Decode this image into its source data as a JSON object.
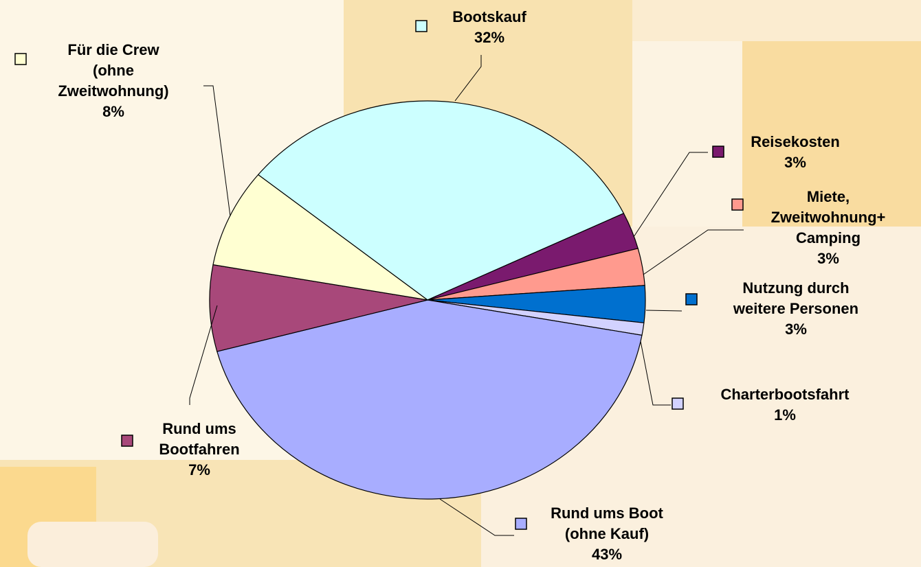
{
  "chart_data": {
    "type": "pie",
    "categories": [
      "Bootskauf",
      "Reisekosten",
      "Miete, Zweitwohnung+ Camping",
      "Nutzung durch weitere Personen",
      "Charterbootsfahrt",
      "Rund ums Boot (ohne Kauf)",
      "Rund ums Bootfahren",
      "Für die Crew (ohne Zweitwohnung)"
    ],
    "values": [
      32,
      3,
      3,
      3,
      1,
      43,
      7,
      8
    ],
    "value_labels": [
      "32%",
      "3%",
      "3%",
      "3%",
      "1%",
      "43%",
      "7%",
      "8%"
    ],
    "colors": [
      "#ccffff",
      "#7a1a6e",
      "#ff9a8e",
      "#0070cf",
      "#d2d2ff",
      "#a8adff",
      "#a8487a",
      "#ffffd2"
    ]
  }
}
